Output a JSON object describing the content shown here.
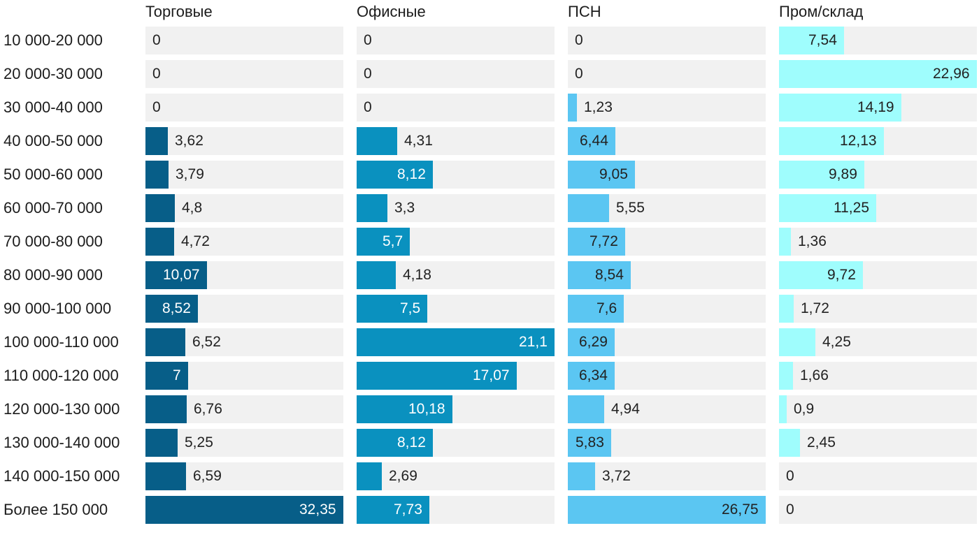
{
  "chart_data": {
    "type": "bar",
    "orientation": "horizontal",
    "title": "",
    "xlabel": "",
    "ylabel": "",
    "grid": false,
    "legend_position": "column-headers-top",
    "track_color": "#f1f1f1",
    "outside_label_color": "#222222",
    "categories": [
      "10 000-20 000",
      "20 000-30 000",
      "30 000-40 000",
      "40 000-50 000",
      "50 000-60 000",
      "60 000-70 000",
      "70 000-80 000",
      "80 000-90 000",
      "90 000-100 000",
      "100 000-110 000",
      "110 000-120 000",
      "120 000-130 000",
      "130 000-140 000",
      "140 000-150 000",
      "Более 150 000"
    ],
    "series": [
      {
        "name": "Торговые",
        "color": "#075e88",
        "inside_label_color": "#ffffff",
        "axis_max": 32.35,
        "values": [
          0,
          0,
          0,
          3.62,
          3.79,
          4.8,
          4.72,
          10.07,
          8.52,
          6.52,
          7,
          6.76,
          5.25,
          6.59,
          32.35
        ],
        "labels": [
          "0",
          "0",
          "0",
          "3,62",
          "3,79",
          "4,8",
          "4,72",
          "10,07",
          "8,52",
          "6,52",
          "7",
          "6,76",
          "5,25",
          "6,59",
          "32,35"
        ]
      },
      {
        "name": "Офисные",
        "color": "#0a91bf",
        "inside_label_color": "#ffffff",
        "axis_max": 21.1,
        "values": [
          0,
          0,
          0,
          4.31,
          8.12,
          3.3,
          5.7,
          4.18,
          7.5,
          21.1,
          17.07,
          10.18,
          8.12,
          2.69,
          7.73
        ],
        "labels": [
          "0",
          "0",
          "0",
          "4,31",
          "8,12",
          "3,3",
          "5,7",
          "4,18",
          "7,5",
          "21,1",
          "17,07",
          "10,18",
          "8,12",
          "2,69",
          "7,73"
        ]
      },
      {
        "name": "ПСН",
        "color": "#5bc6f2",
        "inside_label_color": "#222222",
        "axis_max": 26.75,
        "values": [
          0,
          0,
          1.23,
          6.44,
          9.05,
          5.55,
          7.72,
          8.54,
          7.6,
          6.29,
          6.34,
          4.94,
          5.83,
          3.72,
          26.75
        ],
        "labels": [
          "0",
          "0",
          "1,23",
          "6,44",
          "9,05",
          "5,55",
          "7,72",
          "8,54",
          "7,6",
          "6,29",
          "6,34",
          "4,94",
          "5,83",
          "3,72",
          "26,75"
        ]
      },
      {
        "name": "Пром/склад",
        "color": "#9ffdfd",
        "inside_label_color": "#222222",
        "axis_max": 22.96,
        "values": [
          7.54,
          22.96,
          14.19,
          12.13,
          9.89,
          11.25,
          1.36,
          9.72,
          1.72,
          4.25,
          1.66,
          0.9,
          2.45,
          0,
          0
        ],
        "labels": [
          "7,54",
          "22,96",
          "14,19",
          "12,13",
          "9,89",
          "11,25",
          "1,36",
          "9,72",
          "1,72",
          "4,25",
          "1,66",
          "0,9",
          "2,45",
          "0",
          "0"
        ]
      }
    ]
  }
}
